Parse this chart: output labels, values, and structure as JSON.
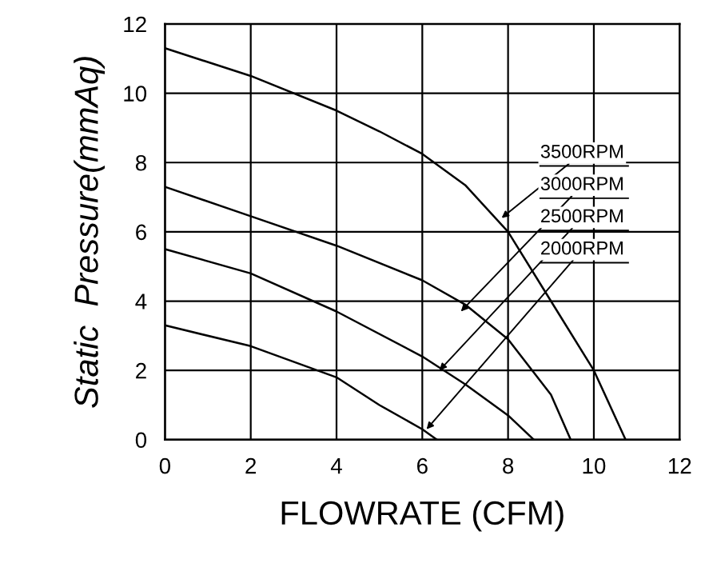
{
  "chart_data": {
    "type": "line",
    "xlabel": "FLOWRATE (CFM)",
    "ylabel": "Static  Pressure(mmAq)",
    "xlim": [
      0,
      12
    ],
    "ylim": [
      0,
      12
    ],
    "xticks": [
      0,
      2,
      4,
      6,
      8,
      10,
      12
    ],
    "yticks": [
      0,
      2,
      4,
      6,
      8,
      10,
      12
    ],
    "grid": true,
    "marker": "none",
    "line_style": "solid",
    "series": [
      {
        "color": "#000000",
        "x": [
          0,
          2,
          4,
          5,
          6,
          7,
          8,
          9,
          10,
          10.74
        ],
        "values": [
          11.3,
          10.5,
          9.5,
          8.9,
          8.25,
          7.35,
          6.0,
          4.0,
          2.0,
          0
        ]
      },
      {
        "color": "#000000",
        "x": [
          0,
          2,
          4,
          6,
          7,
          8,
          9,
          9.46
        ],
        "values": [
          7.3,
          6.45,
          5.6,
          4.6,
          3.9,
          2.9,
          1.3,
          0
        ]
      },
      {
        "color": "#000000",
        "x": [
          0,
          2,
          4,
          6,
          7,
          8,
          8.6
        ],
        "values": [
          5.5,
          4.8,
          3.7,
          2.4,
          1.6,
          0.7,
          0
        ]
      },
      {
        "color": "#000000",
        "x": [
          0,
          2,
          4,
          5,
          6,
          6.34
        ],
        "values": [
          3.3,
          2.7,
          1.8,
          1.0,
          0.3,
          0
        ]
      }
    ],
    "annotations": [
      {
        "text": "3500RPM",
        "x": 7.85,
        "y": 6.4
      },
      {
        "text": "3000RPM",
        "x": 6.9,
        "y": 3.7
      },
      {
        "text": "2500RPM",
        "x": 6.4,
        "y": 2.0
      },
      {
        "text": "2000RPM",
        "x": 6.1,
        "y": 0.3
      }
    ]
  }
}
